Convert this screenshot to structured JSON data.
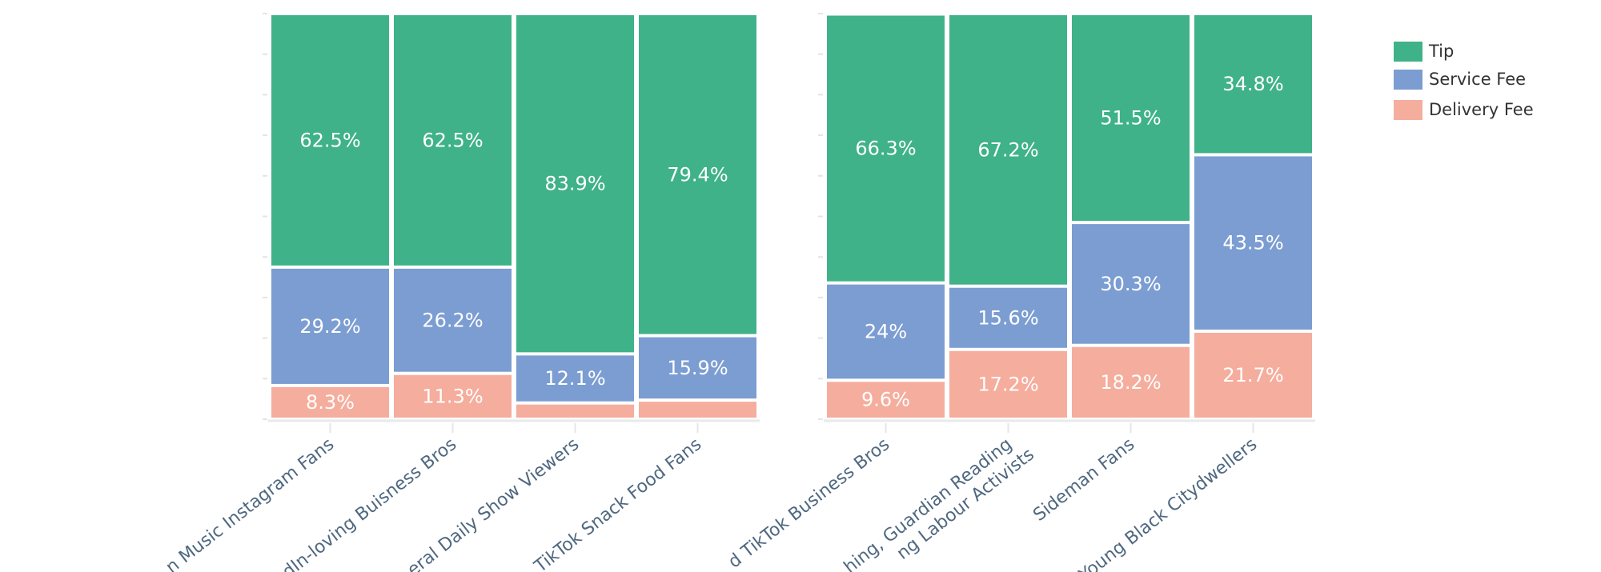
{
  "chart_data": {
    "type": "bar",
    "stacked": true,
    "normalized": true,
    "ylim": [
      0,
      100
    ],
    "legend_position": "top-right",
    "legend": [
      "Tip",
      "Service Fee",
      "Delivery Fee"
    ],
    "colors": {
      "Tip": "#3fb28a",
      "Service Fee": "#7b9dd2",
      "Delivery Fee": "#f5ad9d"
    },
    "panels": [
      {
        "categories": [
          [
            "n Music Instagram Fans"
          ],
          [
            "dIn-loving Buisness Bros"
          ],
          [
            "eral Daily Show Viewers"
          ],
          [
            "TikTok Snack Food Fans"
          ]
        ],
        "series": [
          {
            "name": "Delivery Fee",
            "values": [
              8.3,
              11.3,
              4.0,
              4.7
            ],
            "labels": [
              "8.3%",
              "11.3%",
              "",
              ""
            ]
          },
          {
            "name": "Service Fee",
            "values": [
              29.2,
              26.2,
              12.1,
              15.9
            ],
            "labels": [
              "29.2%",
              "26.2%",
              "12.1%",
              "15.9%"
            ]
          },
          {
            "name": "Tip",
            "values": [
              62.5,
              62.5,
              83.9,
              79.4
            ],
            "labels": [
              "62.5%",
              "62.5%",
              "83.9%",
              "79.4%"
            ]
          }
        ]
      },
      {
        "categories": [
          [
            "d TikTok Business Bros"
          ],
          [
            "hing, Guardian Reading",
            "ng Labour Activists"
          ],
          [
            "Sideman Fans"
          ],
          [
            "Young Black Citydwellers"
          ]
        ],
        "series": [
          {
            "name": "Delivery Fee",
            "values": [
              9.6,
              17.2,
              18.2,
              21.7
            ],
            "labels": [
              "9.6%",
              "17.2%",
              "18.2%",
              "21.7%"
            ]
          },
          {
            "name": "Service Fee",
            "values": [
              24,
              15.6,
              30.3,
              43.5
            ],
            "labels": [
              "24%",
              "15.6%",
              "30.3%",
              "43.5%"
            ]
          },
          {
            "name": "Tip",
            "values": [
              66.3,
              67.2,
              51.5,
              34.8
            ],
            "labels": [
              "66.3%",
              "67.2%",
              "51.5%",
              "34.8%"
            ]
          }
        ]
      }
    ]
  }
}
